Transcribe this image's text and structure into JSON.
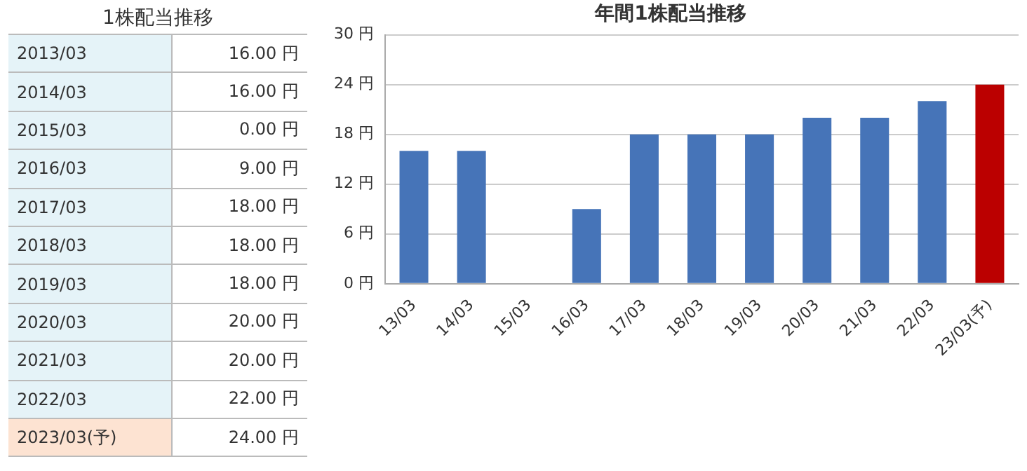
{
  "chart_data": [
    {
      "type": "other",
      "title": "1株配当推移",
      "annotations": [
        "2013/03",
        "16.00 円",
        "2014/03",
        "16.00 円",
        "2015/03",
        "0.00 円",
        "2016/03",
        "9.00 円",
        "2017/03",
        "18.00 円",
        "2018/03",
        "18.00 円",
        "2019/03",
        "18.00 円",
        "2020/03",
        "20.00 円",
        "2021/03",
        "20.00 円",
        "2022/03",
        "22.00 円",
        "2023/03(予)",
        "24.00 円"
      ]
    },
    {
      "type": "bar",
      "title": "年間1株配当推移",
      "categories": [
        "13/03",
        "14/03",
        "15/03",
        "16/03",
        "17/03",
        "18/03",
        "19/03",
        "20/03",
        "21/03",
        "22/03",
        "23/03(予)"
      ],
      "values": [
        16,
        16,
        0,
        9,
        18,
        18,
        18,
        20,
        20,
        22,
        24
      ],
      "colors": [
        "#4674b8",
        "#4674b8",
        "#4674b8",
        "#4674b8",
        "#4674b8",
        "#4674b8",
        "#4674b8",
        "#4674b8",
        "#4674b8",
        "#4674b8",
        "#bb0000"
      ],
      "ylim": [
        0,
        30
      ],
      "yticks": [
        {
          "value": 0,
          "label": "0 円"
        },
        {
          "value": 6,
          "label": "6 円"
        },
        {
          "value": 12,
          "label": "12 円"
        },
        {
          "value": 18,
          "label": "18 円"
        },
        {
          "value": 24,
          "label": "24 円"
        },
        {
          "value": 30,
          "label": "30 円"
        }
      ],
      "grid": "y",
      "legend": false
    }
  ]
}
